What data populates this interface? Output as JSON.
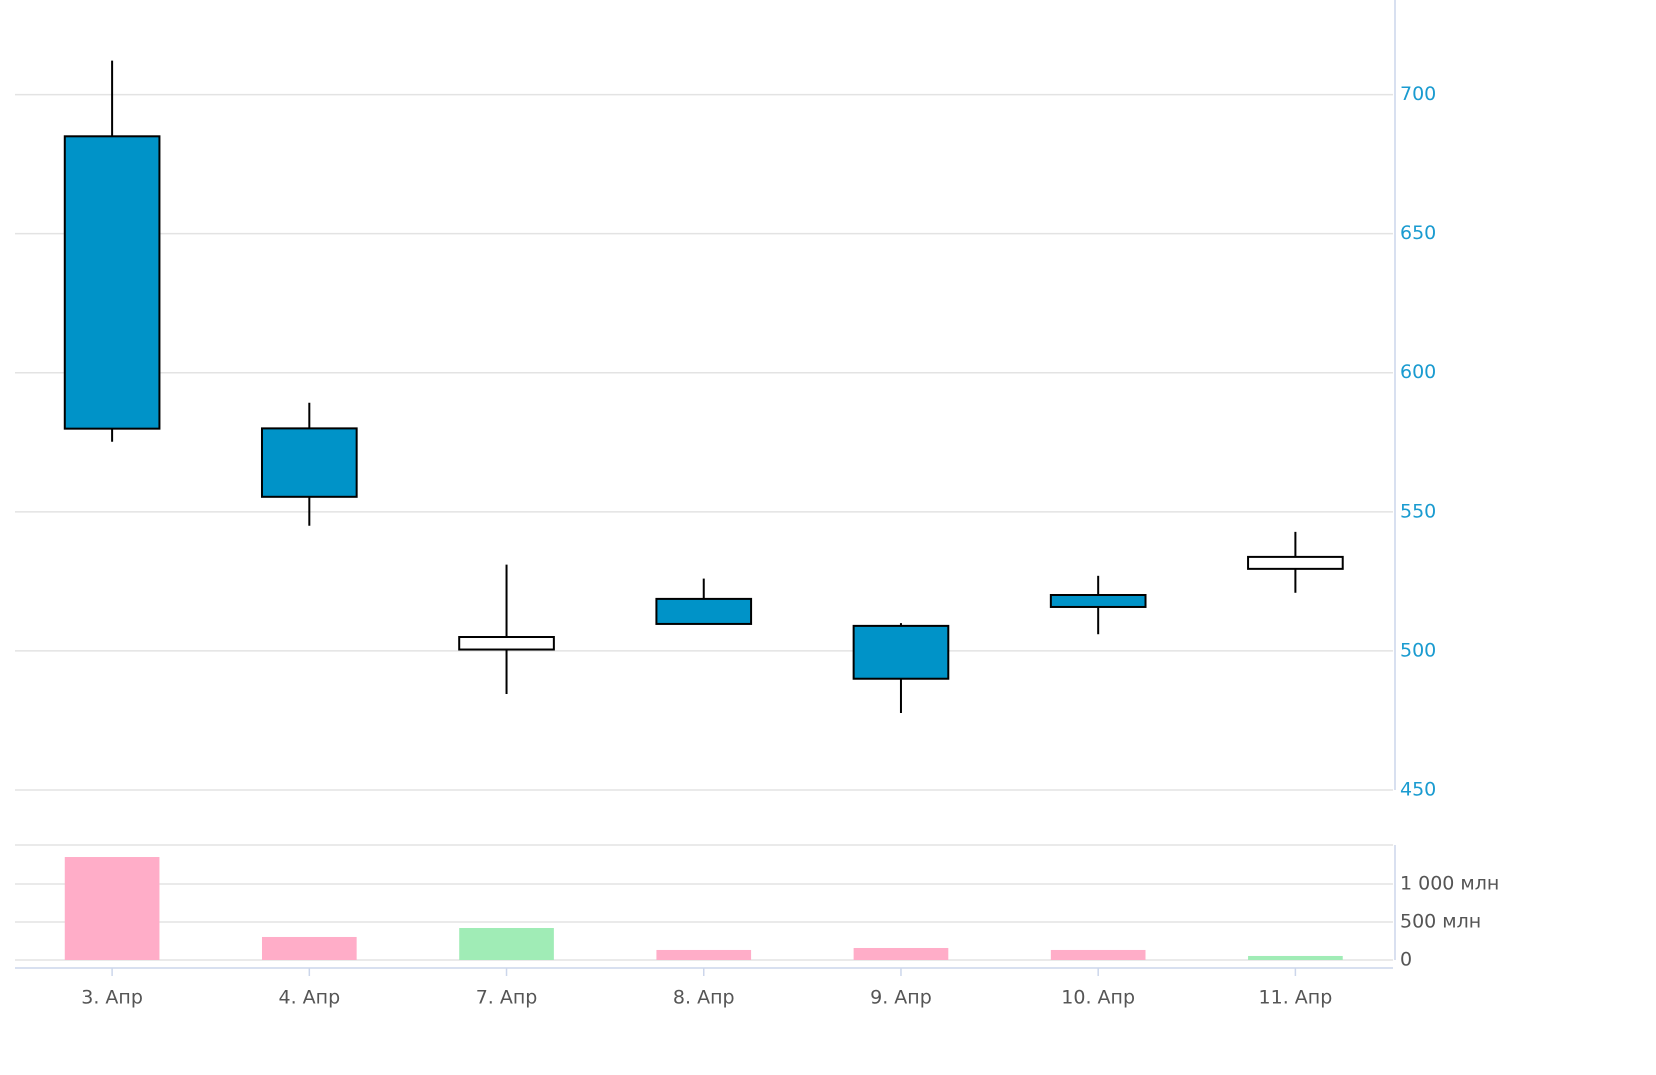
{
  "chart_data": [
    {
      "type": "candlestick",
      "categories": [
        "3. Апр",
        "4. Апр",
        "7. Апр",
        "8. Апр",
        "9. Апр",
        "10. Апр",
        "11. Апр"
      ],
      "open": [
        685,
        580,
        500.5,
        518.7,
        509,
        520.1,
        529.5
      ],
      "high": [
        712.2,
        589.2,
        531,
        526,
        510,
        527,
        542.8
      ],
      "low": [
        575.2,
        545,
        484.5,
        509.7,
        477.7,
        506,
        520.9
      ],
      "close": [
        579.9,
        555.4,
        505,
        509.7,
        490,
        515.8,
        533.8
      ],
      "up_color": "#ffffff",
      "down_color": "#0093c8",
      "ylim": [
        450,
        734
      ],
      "yticks": [
        450,
        500,
        550,
        600,
        650,
        700
      ],
      "grid": true
    },
    {
      "type": "bar",
      "values": [
        1355,
        303,
        421,
        132,
        158,
        132,
        53
      ],
      "up_color": "#a0ecb6",
      "down_color": "#ffadc8",
      "ylim": [
        0,
        1500
      ],
      "yticks": [
        {
          "value": 0,
          "label": "0"
        },
        {
          "value": 500,
          "label": "500 млн"
        },
        {
          "value": 1000,
          "label": "1 000 млн"
        }
      ],
      "grid": true
    }
  ]
}
